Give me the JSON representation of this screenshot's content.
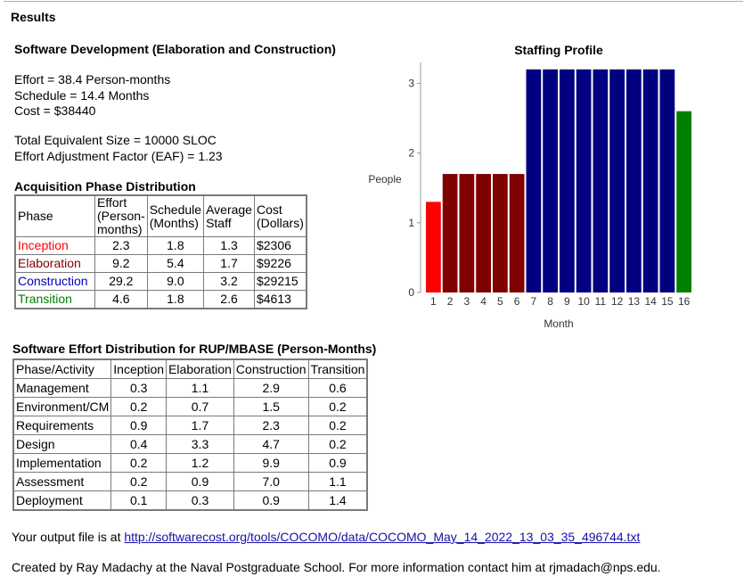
{
  "results_heading": "Results",
  "section_title": "Software Development (Elaboration and Construction)",
  "summary": {
    "effort": "Effort = 38.4 Person-months",
    "schedule": "Schedule = 14.4 Months",
    "cost": "Cost = $38440",
    "size": "Total Equivalent Size = 10000 SLOC",
    "eaf": "Effort Adjustment Factor (EAF) = 1.23"
  },
  "acquisition": {
    "title": "Acquisition Phase Distribution",
    "headers": {
      "phase": "Phase",
      "effort_1": "Effort",
      "effort_2": "(Person-",
      "effort_3": "months)",
      "schedule_1": "Schedule",
      "schedule_2": "(Months)",
      "staff_1": "Average",
      "staff_2": "Staff",
      "cost_1": "Cost",
      "cost_2": "(Dollars)"
    },
    "rows": [
      {
        "phase": "Inception",
        "color": "#ff0000",
        "effort": "2.3",
        "schedule": "1.8",
        "staff": "1.3",
        "cost": "$2306"
      },
      {
        "phase": "Elaboration",
        "color": "#800000",
        "effort": "9.2",
        "schedule": "5.4",
        "staff": "1.7",
        "cost": "$9226"
      },
      {
        "phase": "Construction",
        "color": "#0000c0",
        "effort": "29.2",
        "schedule": "9.0",
        "staff": "3.2",
        "cost": "$29215"
      },
      {
        "phase": "Transition",
        "color": "#008000",
        "effort": "4.6",
        "schedule": "1.8",
        "staff": "2.6",
        "cost": "$4613"
      }
    ]
  },
  "rup": {
    "title": "Software Effort Distribution for RUP/MBASE (Person-Months)",
    "headers": [
      "Phase/Activity",
      "Inception",
      "Elaboration",
      "Construction",
      "Transition"
    ],
    "rows": [
      {
        "activity": "Management",
        "values": [
          "0.3",
          "1.1",
          "2.9",
          "0.6"
        ]
      },
      {
        "activity": "Environment/CM",
        "values": [
          "0.2",
          "0.7",
          "1.5",
          "0.2"
        ]
      },
      {
        "activity": "Requirements",
        "values": [
          "0.9",
          "1.7",
          "2.3",
          "0.2"
        ]
      },
      {
        "activity": "Design",
        "values": [
          "0.4",
          "3.3",
          "4.7",
          "0.2"
        ]
      },
      {
        "activity": "Implementation",
        "values": [
          "0.2",
          "1.2",
          "9.9",
          "0.9"
        ]
      },
      {
        "activity": "Assessment",
        "values": [
          "0.2",
          "0.9",
          "7.0",
          "1.1"
        ]
      },
      {
        "activity": "Deployment",
        "values": [
          "0.1",
          "0.3",
          "0.9",
          "1.4"
        ]
      }
    ]
  },
  "output": {
    "prefix": "Your output file is at ",
    "link": "http://softwarecost.org/tools/COCOMO/data/COCOMO_May_14_2022_13_03_35_496744.txt"
  },
  "footer": "Created by Ray Madachy at the Naval Postgraduate School. For more information contact him at rjmadach@nps.edu.",
  "chart_data": {
    "type": "bar",
    "title": "Staffing Profile",
    "xlabel": "Month",
    "ylabel": "People",
    "ylim": [
      0,
      3.3
    ],
    "yticks": [
      0,
      1,
      2,
      3
    ],
    "categories": [
      "1",
      "2",
      "3",
      "4",
      "5",
      "6",
      "7",
      "8",
      "9",
      "10",
      "11",
      "12",
      "13",
      "14",
      "15",
      "16"
    ],
    "values": [
      1.3,
      1.7,
      1.7,
      1.7,
      1.7,
      1.7,
      3.2,
      3.2,
      3.2,
      3.2,
      3.2,
      3.2,
      3.2,
      3.2,
      3.2,
      2.6
    ],
    "bar_colors": [
      "#ff0000",
      "#800000",
      "#800000",
      "#800000",
      "#800000",
      "#800000",
      "#000080",
      "#000080",
      "#000080",
      "#000080",
      "#000080",
      "#000080",
      "#000080",
      "#000080",
      "#000080",
      "#008000"
    ],
    "grid": false,
    "legend": "none"
  }
}
